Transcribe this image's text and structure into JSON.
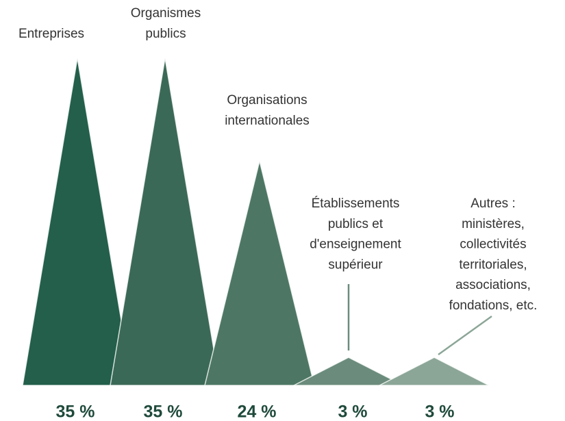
{
  "chart_data": {
    "type": "triangle",
    "categories": [
      [
        "Entreprises"
      ],
      [
        "Organismes",
        "publics"
      ],
      [
        "Organisations",
        "internationales"
      ],
      [
        "Établissements",
        "publics et",
        "d'enseignement",
        "supérieur"
      ],
      [
        "Autres :",
        "ministères,",
        "collectivités",
        "territoriales,",
        "associations,",
        "fondations, etc."
      ]
    ],
    "values": [
      35,
      35,
      24,
      3,
      3
    ],
    "value_labels": [
      "35 %",
      "35 %",
      "24 %",
      "3 %",
      "3 %"
    ],
    "colors": [
      "#235f4a",
      "#3b6957",
      "#4d7764",
      "#6b8c7c",
      "#8ba697"
    ]
  }
}
